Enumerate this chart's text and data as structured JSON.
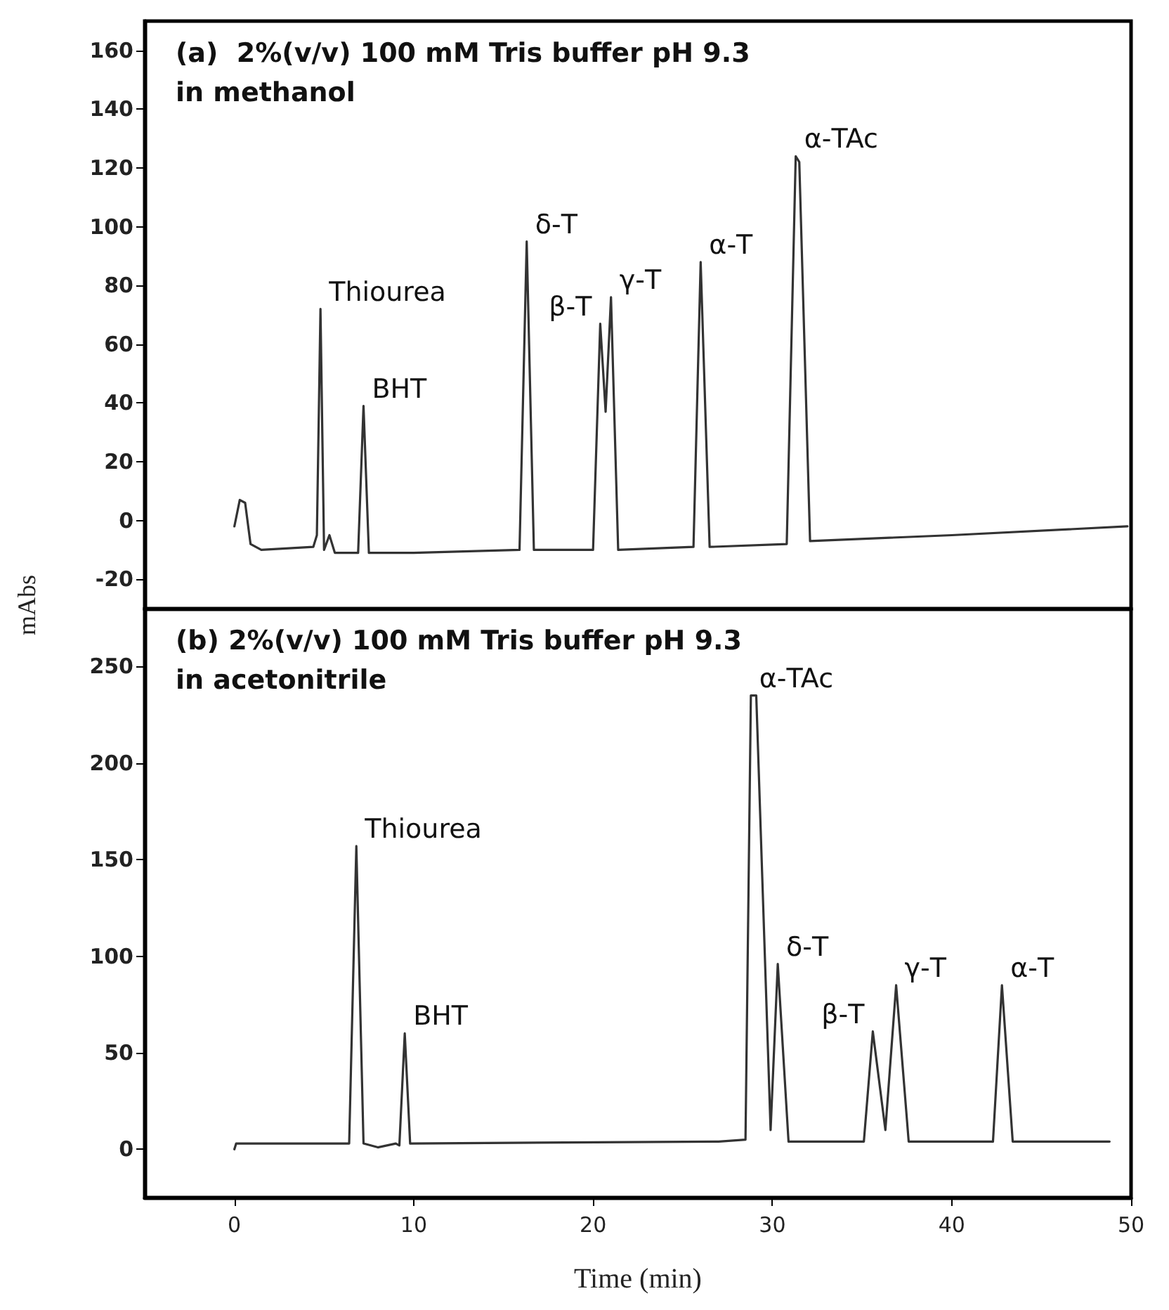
{
  "chart_data": [
    {
      "type": "line",
      "title": "(a)  2%(v/v) 100 mM Tris buffer pH 9.3\nin methanol",
      "ylabel": "mAbs",
      "xlim": [
        -5,
        50
      ],
      "ylim": [
        -30,
        170
      ],
      "yticks": [
        -20,
        0,
        20,
        40,
        60,
        80,
        100,
        120,
        140,
        160
      ],
      "tick_labels": "y",
      "grid": false,
      "marker": "none",
      "line_style": "solid",
      "series": [
        {
          "color": "#333333",
          "x": [
            0,
            0.3,
            0.6,
            0.9,
            1.5,
            4.4,
            4.6,
            4.8,
            5.0,
            5.3,
            5.6,
            6.9,
            7.2,
            7.5,
            10,
            15.9,
            16.3,
            16.7,
            20.0,
            20.4,
            20.7,
            21.0,
            21.4,
            25.6,
            26.0,
            26.5,
            30.8,
            31.3,
            31.5,
            32.1,
            40,
            49.8
          ],
          "values": [
            -2,
            7,
            6,
            -8,
            -10,
            -9,
            -5,
            72,
            -10,
            -5,
            -11,
            -11,
            39,
            -11,
            -11,
            -10,
            95,
            -10,
            -10,
            67,
            37,
            76,
            -10,
            -9,
            88,
            -9,
            -8,
            124,
            122,
            -7,
            -5,
            -2
          ]
        }
      ],
      "annotations": [
        {
          "text": "Thiourea",
          "x": 4.8,
          "y": 72
        },
        {
          "text": "BHT",
          "x": 7.2,
          "y": 39
        },
        {
          "text": "δ-T",
          "x": 16.3,
          "y": 95
        },
        {
          "text": "β-T",
          "x": 20.4,
          "y": 67
        },
        {
          "text": "γ-T",
          "x": 21.0,
          "y": 76
        },
        {
          "text": "α-T",
          "x": 26.0,
          "y": 88
        },
        {
          "text": "α-TAc",
          "x": 31.3,
          "y": 124
        }
      ]
    },
    {
      "type": "line",
      "title": "(b) 2%(v/v) 100 mM Tris buffer pH 9.3\nin acetonitrile",
      "xlabel": "Time (min)",
      "xlim": [
        -5,
        50
      ],
      "xticks": [
        0,
        10,
        20,
        30,
        40,
        50
      ],
      "ylim": [
        -25,
        280
      ],
      "yticks": [
        0,
        50,
        100,
        150,
        200,
        250
      ],
      "grid": false,
      "marker": "none",
      "line_style": "solid",
      "series": [
        {
          "color": "#333333",
          "x": [
            0,
            0.1,
            6.4,
            6.8,
            7.2,
            8,
            9,
            9.2,
            9.5,
            9.8,
            27,
            28.5,
            28.8,
            29.1,
            29.9,
            30.3,
            30.9,
            35.1,
            35.6,
            36.3,
            36.9,
            37.6,
            42.3,
            42.8,
            43.4,
            48.8
          ],
          "values": [
            0,
            3,
            3,
            157,
            3,
            1,
            3,
            2,
            60,
            3,
            4,
            5,
            235,
            235,
            10,
            96,
            4,
            4,
            61,
            10,
            85,
            4,
            4,
            85,
            4,
            4
          ]
        }
      ],
      "annotations": [
        {
          "text": "Thiourea",
          "x": 6.8,
          "y": 157
        },
        {
          "text": "BHT",
          "x": 9.5,
          "y": 60
        },
        {
          "text": "α-TAc",
          "x": 28.8,
          "y": 235
        },
        {
          "text": "δ-T",
          "x": 30.3,
          "y": 96
        },
        {
          "text": "β-T",
          "x": 35.6,
          "y": 61
        },
        {
          "text": "γ-T",
          "x": 36.9,
          "y": 85
        },
        {
          "text": "α-T",
          "x": 42.8,
          "y": 85
        }
      ]
    }
  ]
}
